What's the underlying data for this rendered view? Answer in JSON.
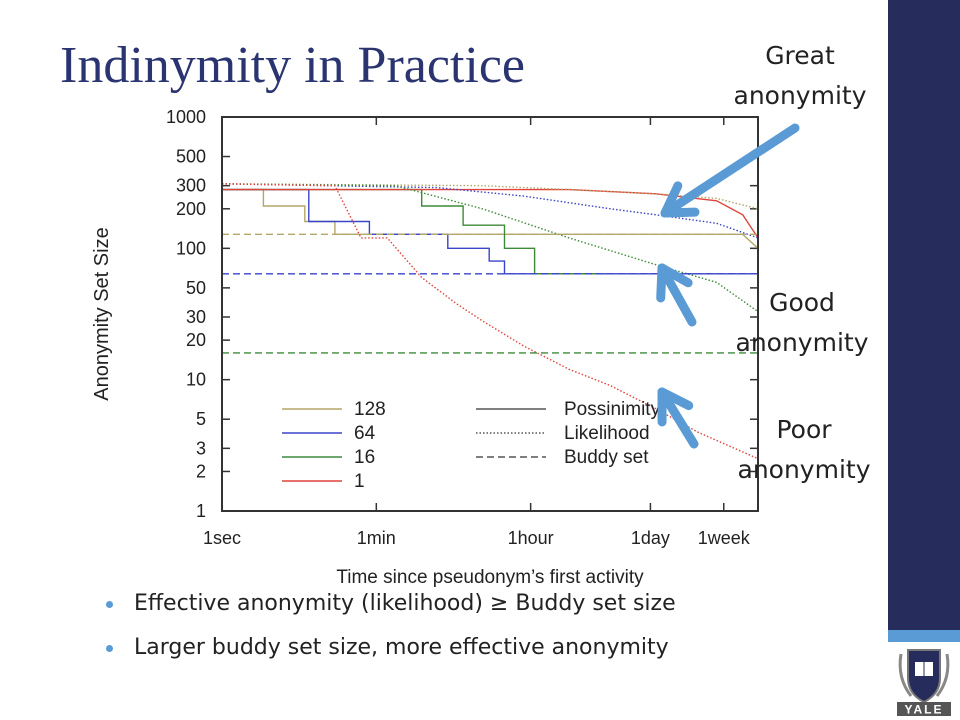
{
  "slide": {
    "title": "Indinymity in Practice",
    "callouts": {
      "great_line1": "Great",
      "great_line2": "anonymity",
      "good_line1": "Good",
      "good_line2": "anonymity",
      "poor_line1": "Poor",
      "poor_line2": "anonymity"
    },
    "bullets": [
      "Effective anonymity (likelihood) ≥ Buddy set size",
      "Larger buddy set size, more effective anonymity"
    ],
    "logo_text": "YALE",
    "colors": {
      "title": "#2a3470",
      "sidebar": "#262c5c",
      "accent": "#5b9bd5",
      "arrow": "#5b9bd5"
    }
  },
  "chart_data": {
    "type": "line",
    "xlabel": "Time since pseudonym’s first activity",
    "ylabel": "Anonymity Set Size",
    "x_scale": "log",
    "y_scale": "log",
    "xticks": [
      "1sec",
      "1min",
      "1hour",
      "1day",
      "1week"
    ],
    "x_tick_seconds": [
      1,
      60,
      3600,
      86400,
      604800
    ],
    "xlim_seconds": [
      1,
      1500000
    ],
    "yticks": [
      1,
      2,
      3,
      5,
      10,
      20,
      30,
      50,
      100,
      200,
      300,
      500,
      1000
    ],
    "ylim": [
      1,
      1000
    ],
    "legend": {
      "colors": [
        {
          "name": "128",
          "color": "#b5a66a"
        },
        {
          "name": "64",
          "color": "#3a45c8"
        },
        {
          "name": "16",
          "color": "#3f8a3a"
        },
        {
          "name": "1",
          "color": "#e0433a"
        }
      ],
      "styles": [
        {
          "name": "Possinimity",
          "dash": "solid"
        },
        {
          "name": "Likelihood",
          "dash": "dotted"
        },
        {
          "name": "Buddy set",
          "dash": "dashed"
        }
      ],
      "placement": "bottom-center"
    },
    "series": [
      {
        "group": "128",
        "metric": "Possinimity",
        "color": "#b5a66a",
        "dash": "solid",
        "points": [
          [
            1,
            280
          ],
          [
            3,
            280
          ],
          [
            3,
            210
          ],
          [
            9,
            210
          ],
          [
            9,
            160
          ],
          [
            20,
            160
          ],
          [
            20,
            128
          ],
          [
            1000000,
            128
          ],
          [
            1500000,
            100
          ]
        ]
      },
      {
        "group": "64",
        "metric": "Possinimity",
        "color": "#3a45c8",
        "dash": "solid",
        "points": [
          [
            1,
            280
          ],
          [
            10,
            280
          ],
          [
            10,
            160
          ],
          [
            50,
            160
          ],
          [
            50,
            128
          ],
          [
            400,
            128
          ],
          [
            400,
            100
          ],
          [
            1200,
            100
          ],
          [
            1200,
            80
          ],
          [
            1800,
            80
          ],
          [
            1800,
            64
          ],
          [
            1500000,
            64
          ]
        ]
      },
      {
        "group": "16",
        "metric": "Possinimity",
        "color": "#3f8a3a",
        "dash": "solid",
        "points": [
          [
            1,
            280
          ],
          [
            200,
            280
          ],
          [
            200,
            210
          ],
          [
            600,
            210
          ],
          [
            600,
            150
          ],
          [
            1800,
            150
          ],
          [
            1800,
            100
          ],
          [
            4000,
            100
          ],
          [
            4000,
            64
          ],
          [
            20000,
            64
          ],
          [
            20000,
            64
          ]
        ]
      },
      {
        "group": "1",
        "metric": "Possinimity",
        "color": "#e0433a",
        "dash": "solid",
        "points": [
          [
            1,
            280
          ],
          [
            10000,
            280
          ],
          [
            100000,
            260
          ],
          [
            500000,
            230
          ],
          [
            1000000,
            180
          ],
          [
            1500000,
            120
          ]
        ]
      },
      {
        "group": "128",
        "metric": "Likelihood",
        "color": "#b5a66a",
        "dash": "dotted",
        "points": [
          [
            1,
            310
          ],
          [
            1000,
            300
          ],
          [
            10000,
            280
          ],
          [
            100000,
            260
          ],
          [
            500000,
            240
          ],
          [
            1500000,
            200
          ]
        ]
      },
      {
        "group": "64",
        "metric": "Likelihood",
        "color": "#3a45c8",
        "dash": "dotted",
        "points": [
          [
            1,
            310
          ],
          [
            300,
            290
          ],
          [
            3000,
            250
          ],
          [
            30000,
            200
          ],
          [
            100000,
            180
          ],
          [
            500000,
            155
          ],
          [
            1500000,
            120
          ]
        ]
      },
      {
        "group": "16",
        "metric": "Likelihood",
        "color": "#3f8a3a",
        "dash": "dotted",
        "points": [
          [
            1,
            310
          ],
          [
            100,
            300
          ],
          [
            1000,
            200
          ],
          [
            10000,
            120
          ],
          [
            100000,
            75
          ],
          [
            500000,
            55
          ],
          [
            1500000,
            33
          ]
        ]
      },
      {
        "group": "1",
        "metric": "Likelihood",
        "color": "#e0433a",
        "dash": "dotted",
        "points": [
          [
            1,
            310
          ],
          [
            20,
            300
          ],
          [
            40,
            120
          ],
          [
            80,
            120
          ],
          [
            200,
            60
          ],
          [
            500,
            38
          ],
          [
            1000,
            28
          ],
          [
            3000,
            18
          ],
          [
            10000,
            12
          ],
          [
            30000,
            9
          ],
          [
            100000,
            6
          ],
          [
            300000,
            4
          ],
          [
            1500000,
            2.5
          ]
        ]
      },
      {
        "group": "128",
        "metric": "Buddy set",
        "color": "#b5a66a",
        "dash": "dashed",
        "points": [
          [
            1,
            128
          ],
          [
            1500000,
            128
          ]
        ]
      },
      {
        "group": "64",
        "metric": "Buddy set",
        "color": "#3a45c8",
        "dash": "dashed",
        "points": [
          [
            1,
            64
          ],
          [
            1500000,
            64
          ]
        ]
      },
      {
        "group": "16",
        "metric": "Buddy set",
        "color": "#3f8a3a",
        "dash": "dashed",
        "points": [
          [
            1,
            16
          ],
          [
            1500000,
            16
          ]
        ]
      },
      {
        "group": "1",
        "metric": "Buddy set",
        "color": "#e0433a",
        "dash": "dashed",
        "points": [
          [
            1,
            1
          ],
          [
            1500000,
            1
          ]
        ]
      }
    ]
  }
}
